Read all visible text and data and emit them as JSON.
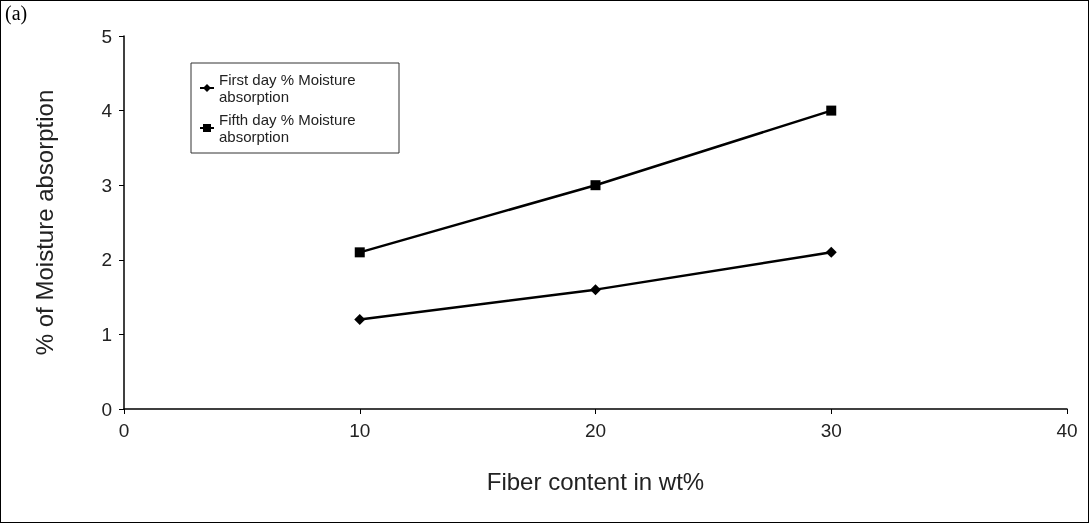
{
  "chart_data": {
    "type": "line",
    "xlabel": "Fiber content in wt%",
    "ylabel": "% of Moisture absorption",
    "annotations": [
      "(a)"
    ],
    "x": [
      10,
      20,
      30
    ],
    "series": [
      {
        "name": "First day % Moisture absorption",
        "color": "#000000",
        "marker": "diamond",
        "values": [
          1.2,
          1.6,
          2.1
        ]
      },
      {
        "name": "Fifth day % Moisture absorption",
        "color": "#000000",
        "marker": "square",
        "values": [
          2.1,
          3.0,
          4.0
        ]
      }
    ],
    "xlim": [
      0,
      40
    ],
    "xticks": [
      0,
      10,
      20,
      30,
      40
    ],
    "ylim": [
      0,
      5
    ],
    "yticks": [
      0,
      1,
      2,
      3,
      4,
      5
    ],
    "grid": false,
    "legend": "top left",
    "line_style": "solid"
  }
}
